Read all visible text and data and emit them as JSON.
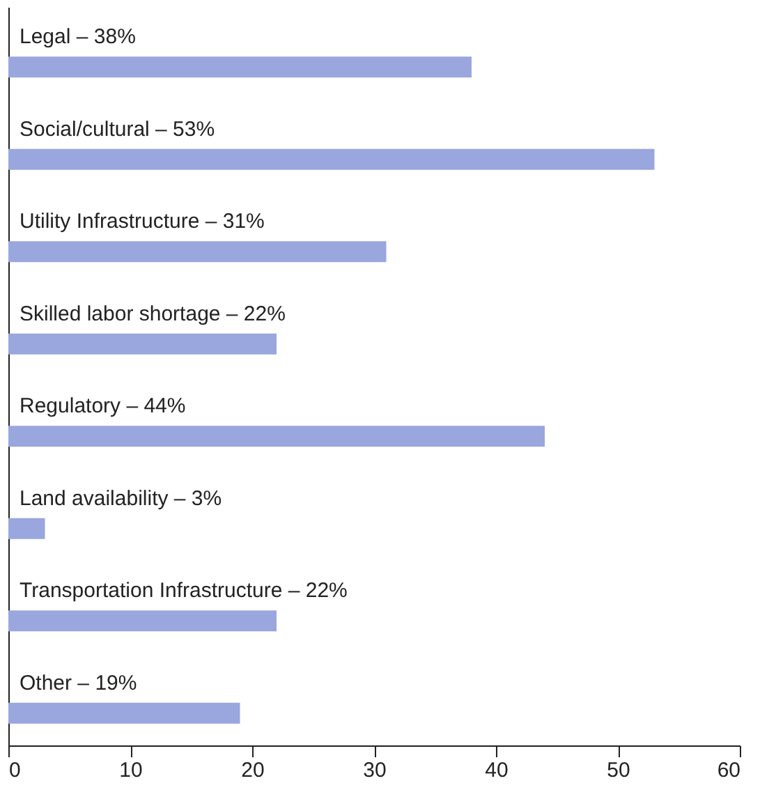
{
  "chart_data": {
    "type": "bar",
    "orientation": "horizontal",
    "categories": [
      "Legal – 38%",
      "Social/cultural – 53%",
      "Utility Infrastructure – 31%",
      "Skilled labor shortage – 22%",
      "Regulatory – 44%",
      "Land availability – 3%",
      "Transportation Infrastructure – 22%",
      "Other – 19%"
    ],
    "values": [
      38,
      53,
      31,
      22,
      44,
      3,
      22,
      19
    ],
    "color": "#9aa6de",
    "xlim": [
      0,
      60
    ],
    "xticks": [
      0,
      10,
      20,
      30,
      40,
      50,
      60
    ]
  }
}
